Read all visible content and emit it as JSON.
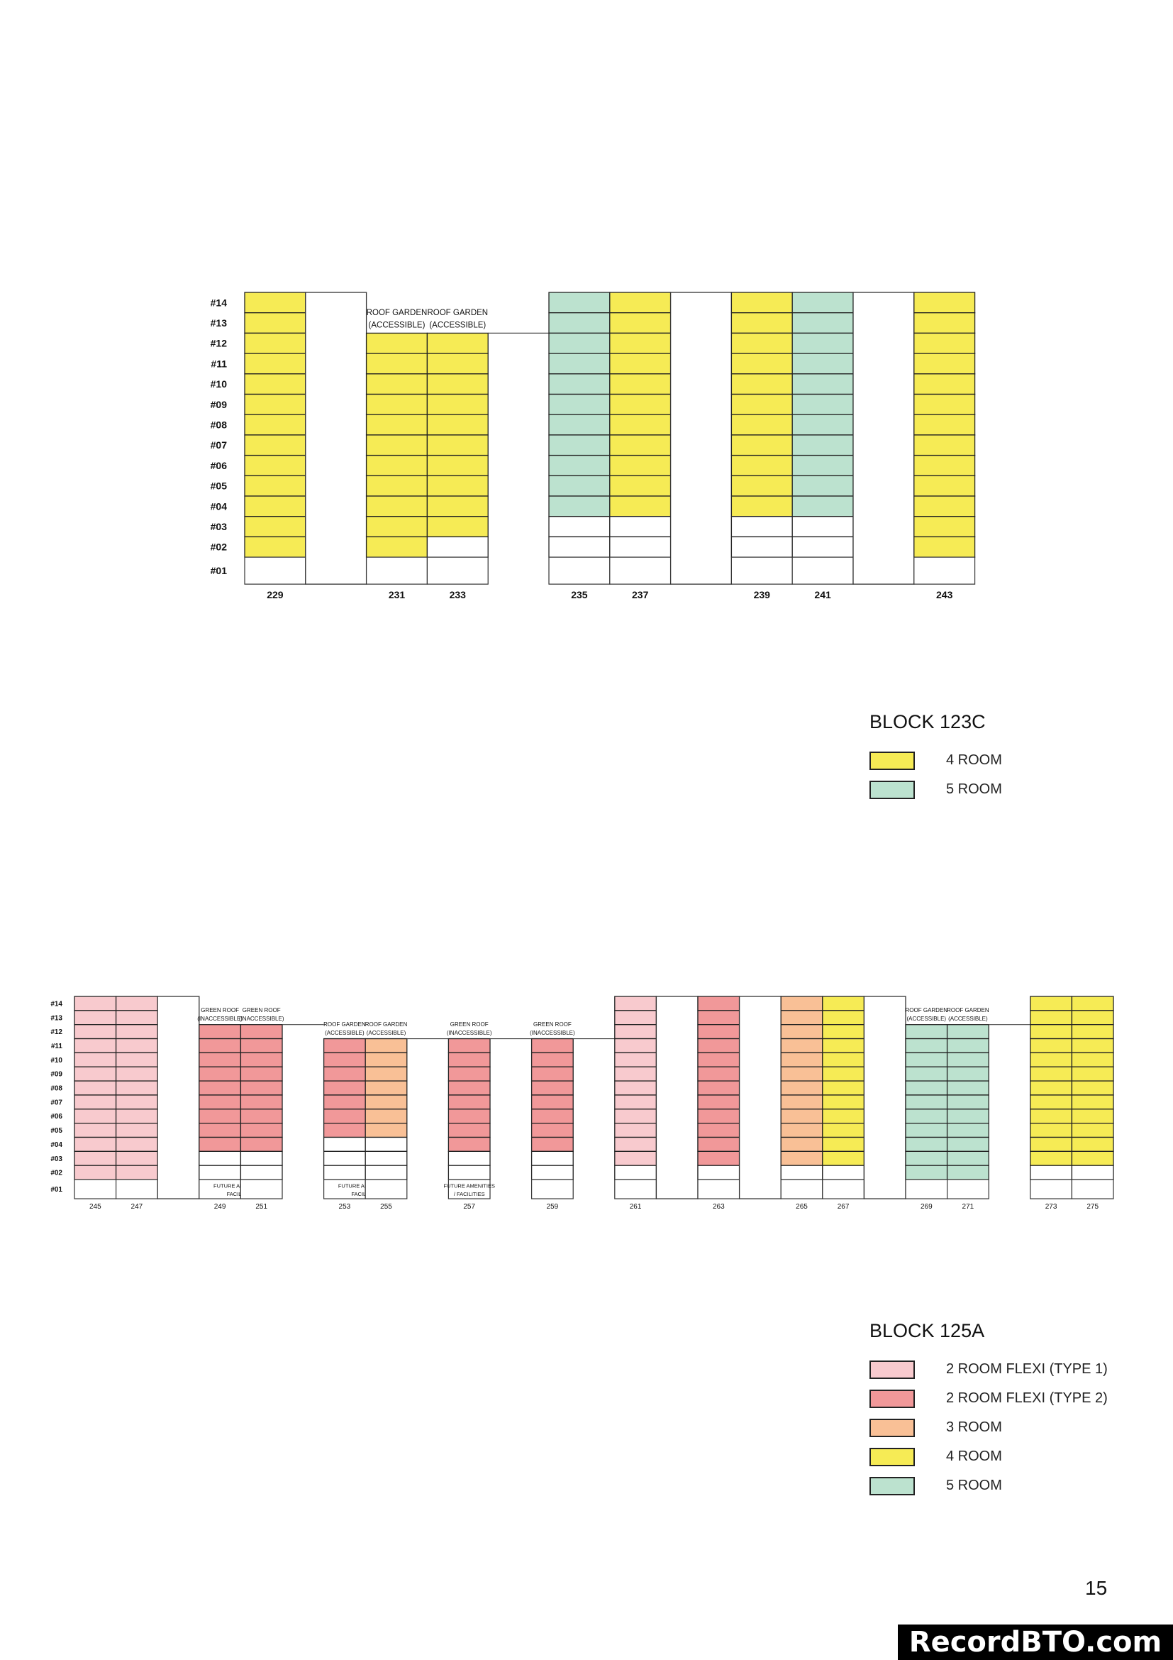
{
  "colors": {
    "2 ROOM FLEXI (TYPE 1)": "#f8cace",
    "2 ROOM FLEXI (TYPE 2)": "#f19899",
    "3 ROOM": "#f9c096",
    "4 ROOM": "#f6eb55",
    "5 ROOM": "#bce2cf"
  },
  "floor_labels": [
    "#14",
    "#13",
    "#12",
    "#11",
    "#10",
    "#09",
    "#08",
    "#07",
    "#06",
    "#05",
    "#04",
    "#03",
    "#02",
    "#01"
  ],
  "blocks": [
    {
      "name": "BLOCK 123C",
      "legend": [
        {
          "label": "4 ROOM",
          "type": "4 ROOM"
        },
        {
          "label": "5 ROOM",
          "type": "5 ROOM"
        }
      ],
      "columns": [
        {
          "unit": "229",
          "type": "4 ROOM",
          "from": 2,
          "to": 14
        },
        {
          "kind": "core"
        },
        {
          "unit": "231",
          "type": "4 ROOM",
          "from": 2,
          "to": 12,
          "roof": [
            "ROOF GARDEN",
            "(ACCESSIBLE)"
          ]
        },
        {
          "unit": "233",
          "type": "4 ROOM",
          "from": 3,
          "to": 12,
          "roof": [
            "ROOF GARDEN",
            "(ACCESSIBLE)"
          ]
        },
        {
          "kind": "void"
        },
        {
          "unit": "235",
          "type": "5 ROOM",
          "from": 4,
          "to": 14
        },
        {
          "unit": "237",
          "type": "4 ROOM",
          "from": 4,
          "to": 14
        },
        {
          "kind": "core"
        },
        {
          "unit": "239",
          "type": "4 ROOM",
          "from": 4,
          "to": 14
        },
        {
          "unit": "241",
          "type": "5 ROOM",
          "from": 4,
          "to": 14
        },
        {
          "kind": "core"
        },
        {
          "unit": "243",
          "type": "4 ROOM",
          "from": 2,
          "to": 14
        }
      ]
    },
    {
      "name": "BLOCK 125A",
      "legend": [
        {
          "label": "2 ROOM FLEXI (TYPE 1)",
          "type": "2 ROOM FLEXI (TYPE 1)"
        },
        {
          "label": "2 ROOM FLEXI  (TYPE 2)",
          "type": "2 ROOM FLEXI (TYPE 2)"
        },
        {
          "label": "3 ROOM",
          "type": "3 ROOM"
        },
        {
          "label": "4 ROOM",
          "type": "4 ROOM"
        },
        {
          "label": "5 ROOM",
          "type": "5 ROOM"
        }
      ],
      "columns": [
        {
          "unit": "245",
          "type": "2 ROOM FLEXI (TYPE 1)",
          "from": 2,
          "to": 14
        },
        {
          "unit": "247",
          "type": "2 ROOM FLEXI (TYPE 1)",
          "from": 2,
          "to": 14
        },
        {
          "kind": "core"
        },
        {
          "unit": "249",
          "type": "2 ROOM FLEXI (TYPE 2)",
          "from": 4,
          "to": 12,
          "roof": [
            "GREEN ROOF",
            "(INACCESSIBLE)"
          ],
          "ground": [
            "FUTURE AMENITIES /",
            "FACILITIES"
          ],
          "ground_span": 2
        },
        {
          "unit": "251",
          "type": "2 ROOM FLEXI (TYPE 2)",
          "from": 4,
          "to": 12,
          "roof": [
            "GREEN ROOF",
            "(INACCESSIBLE)"
          ]
        },
        {
          "kind": "void"
        },
        {
          "unit": "253",
          "type": "2 ROOM FLEXI (TYPE 2)",
          "from": 5,
          "to": 11,
          "roof": [
            "ROOF GARDEN",
            "(ACCESSIBLE)"
          ],
          "ground": [
            "FUTURE AMENITIES /",
            "FACILITIES"
          ],
          "ground_span": 2
        },
        {
          "unit": "255",
          "type": "3 ROOM",
          "from": 5,
          "to": 11,
          "roof": [
            "ROOF GARDEN",
            "(ACCESSIBLE)"
          ]
        },
        {
          "kind": "void"
        },
        {
          "unit": "257",
          "type": "2 ROOM FLEXI (TYPE 2)",
          "from": 4,
          "to": 11,
          "roof": [
            "GREEN ROOF",
            "(INACCESSIBLE)"
          ],
          "ground": [
            "FUTURE AMENITIES",
            "/ FACILITIES"
          ],
          "ground_span": 1
        },
        {
          "kind": "void"
        },
        {
          "unit": "259",
          "type": "2 ROOM FLEXI (TYPE 2)",
          "from": 4,
          "to": 11,
          "roof": [
            "GREEN ROOF",
            "(INACCESSIBLE)"
          ]
        },
        {
          "kind": "void"
        },
        {
          "unit": "261",
          "type": "2 ROOM FLEXI (TYPE 1)",
          "from": 3,
          "to": 14
        },
        {
          "kind": "core"
        },
        {
          "unit": "263",
          "type": "2 ROOM FLEXI (TYPE 2)",
          "from": 3,
          "to": 14
        },
        {
          "kind": "core"
        },
        {
          "unit": "265",
          "type": "3 ROOM",
          "from": 3,
          "to": 14
        },
        {
          "unit": "267",
          "type": "4 ROOM",
          "from": 3,
          "to": 14
        },
        {
          "kind": "core"
        },
        {
          "unit": "269",
          "type": "5 ROOM",
          "from": 2,
          "to": 12,
          "roof": [
            "ROOF GARDEN",
            "(ACCESSIBLE)"
          ]
        },
        {
          "unit": "271",
          "type": "5 ROOM",
          "from": 2,
          "to": 12,
          "roof": [
            "ROOF GARDEN",
            "(ACCESSIBLE)"
          ]
        },
        {
          "kind": "void"
        },
        {
          "unit": "273",
          "type": "4 ROOM",
          "from": 3,
          "to": 14
        },
        {
          "unit": "275",
          "type": "4 ROOM",
          "from": 3,
          "to": 14
        }
      ]
    }
  ],
  "page_number": "15",
  "watermark": "RecordBTO.com"
}
